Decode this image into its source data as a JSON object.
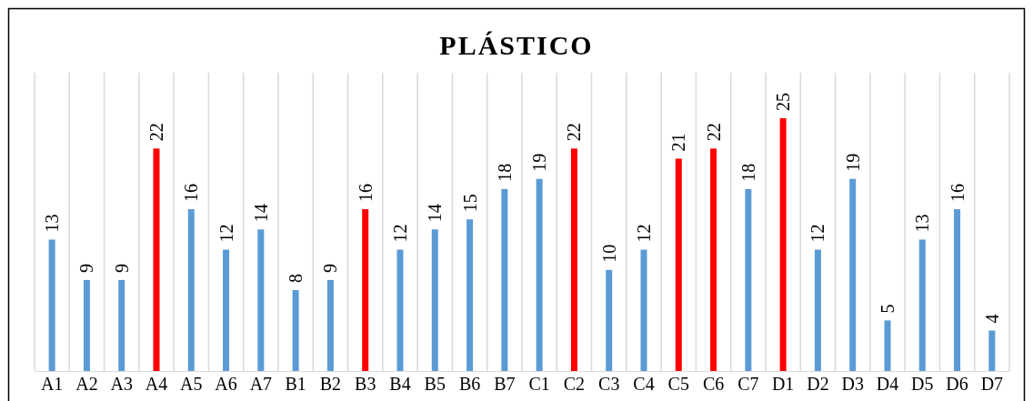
{
  "chart_data": {
    "type": "bar",
    "title": "PLÁSTICO",
    "categories": [
      "A1",
      "A2",
      "A3",
      "A4",
      "A5",
      "A6",
      "A7",
      "B1",
      "B2",
      "B3",
      "B4",
      "B5",
      "B6",
      "B7",
      "C1",
      "C2",
      "C3",
      "C4",
      "C5",
      "C6",
      "C7",
      "D1",
      "D2",
      "D3",
      "D4",
      "D5",
      "D6",
      "D7"
    ],
    "values": [
      13,
      9,
      9,
      22,
      16,
      12,
      14,
      8,
      9,
      16,
      12,
      14,
      15,
      18,
      19,
      22,
      10,
      12,
      21,
      22,
      18,
      25,
      12,
      19,
      5,
      13,
      16,
      4
    ],
    "colors": [
      "#5b9bd5",
      "#5b9bd5",
      "#5b9bd5",
      "#ff0000",
      "#5b9bd5",
      "#5b9bd5",
      "#5b9bd5",
      "#5b9bd5",
      "#5b9bd5",
      "#ff0000",
      "#5b9bd5",
      "#5b9bd5",
      "#5b9bd5",
      "#5b9bd5",
      "#5b9bd5",
      "#ff0000",
      "#5b9bd5",
      "#5b9bd5",
      "#ff0000",
      "#ff0000",
      "#5b9bd5",
      "#ff0000",
      "#5b9bd5",
      "#5b9bd5",
      "#5b9bd5",
      "#5b9bd5",
      "#5b9bd5",
      "#5b9bd5"
    ],
    "data_labels": true,
    "grid": "x"
  }
}
